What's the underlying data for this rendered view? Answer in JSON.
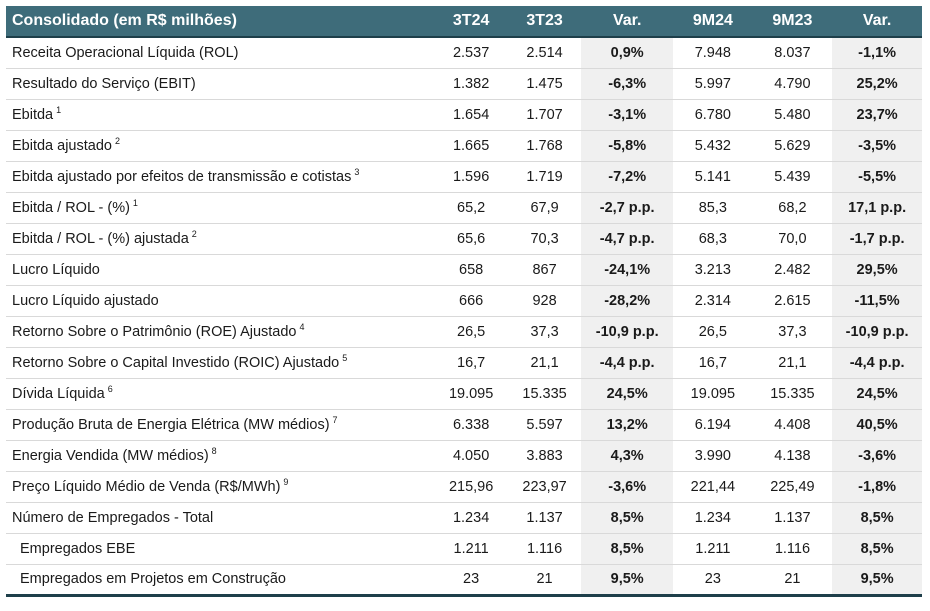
{
  "header": {
    "title": "Consolidado (em R$ milhões)",
    "columns": [
      "3T24",
      "3T23",
      "Var.",
      "9M24",
      "9M23",
      "Var."
    ]
  },
  "rows": [
    {
      "label": "Receita Operacional Líquida (ROL)",
      "sup": "",
      "values": [
        "2.537",
        "2.514",
        "0,9%",
        "7.948",
        "8.037",
        "-1,1%"
      ]
    },
    {
      "label": "Resultado do Serviço (EBIT)",
      "sup": "",
      "values": [
        "1.382",
        "1.475",
        "-6,3%",
        "5.997",
        "4.790",
        "25,2%"
      ]
    },
    {
      "label": "Ebitda",
      "sup": "1",
      "values": [
        "1.654",
        "1.707",
        "-3,1%",
        "6.780",
        "5.480",
        "23,7%"
      ]
    },
    {
      "label": "Ebitda ajustado",
      "sup": "2",
      "values": [
        "1.665",
        "1.768",
        "-5,8%",
        "5.432",
        "5.629",
        "-3,5%"
      ]
    },
    {
      "label": "Ebitda ajustado por efeitos de transmissão e cotistas",
      "sup": "3",
      "values": [
        "1.596",
        "1.719",
        "-7,2%",
        "5.141",
        "5.439",
        "-5,5%"
      ]
    },
    {
      "label": "Ebitda / ROL - (%)",
      "sup": "1",
      "values": [
        "65,2",
        "67,9",
        "-2,7 p.p.",
        "85,3",
        "68,2",
        "17,1 p.p."
      ]
    },
    {
      "label": "Ebitda / ROL - (%) ajustada",
      "sup": "2",
      "values": [
        "65,6",
        "70,3",
        "-4,7 p.p.",
        "68,3",
        "70,0",
        "-1,7 p.p."
      ]
    },
    {
      "label": "Lucro Líquido",
      "sup": "",
      "values": [
        "658",
        "867",
        "-24,1%",
        "3.213",
        "2.482",
        "29,5%"
      ]
    },
    {
      "label": "Lucro Líquido ajustado",
      "sup": "",
      "values": [
        "666",
        "928",
        "-28,2%",
        "2.314",
        "2.615",
        "-11,5%"
      ]
    },
    {
      "label": "Retorno Sobre o Patrimônio (ROE) Ajustado",
      "sup": "4",
      "values": [
        "26,5",
        "37,3",
        "-10,9 p.p.",
        "26,5",
        "37,3",
        "-10,9 p.p."
      ]
    },
    {
      "label": "Retorno Sobre o Capital Investido (ROIC) Ajustado",
      "sup": "5",
      "values": [
        "16,7",
        "21,1",
        "-4,4 p.p.",
        "16,7",
        "21,1",
        "-4,4 p.p."
      ]
    },
    {
      "label": "Dívida Líquida",
      "sup": "6",
      "values": [
        "19.095",
        "15.335",
        "24,5%",
        "19.095",
        "15.335",
        "24,5%"
      ]
    },
    {
      "label": "Produção Bruta de Energia Elétrica (MW médios)",
      "sup": "7",
      "values": [
        "6.338",
        "5.597",
        "13,2%",
        "6.194",
        "4.408",
        "40,5%"
      ]
    },
    {
      "label": "Energia Vendida (MW médios)",
      "sup": "8",
      "values": [
        "4.050",
        "3.883",
        "4,3%",
        "3.990",
        "4.138",
        "-3,6%"
      ]
    },
    {
      "label": "Preço Líquido Médio de Venda (R$/MWh)",
      "sup": "9",
      "values": [
        "215,96",
        "223,97",
        "-3,6%",
        "221,44",
        "225,49",
        "-1,8%"
      ]
    },
    {
      "label": "Número de Empregados - Total",
      "sup": "",
      "values": [
        "1.234",
        "1.137",
        "8,5%",
        "1.234",
        "1.137",
        "8,5%"
      ]
    },
    {
      "label": "Empregados EBE",
      "sup": "",
      "sub": true,
      "values": [
        "1.211",
        "1.116",
        "8,5%",
        "1.211",
        "1.116",
        "8,5%"
      ]
    },
    {
      "label": "Empregados em Projetos em Construção",
      "sup": "",
      "sub": true,
      "values": [
        "23",
        "21",
        "9,5%",
        "23",
        "21",
        "9,5%"
      ]
    }
  ]
}
